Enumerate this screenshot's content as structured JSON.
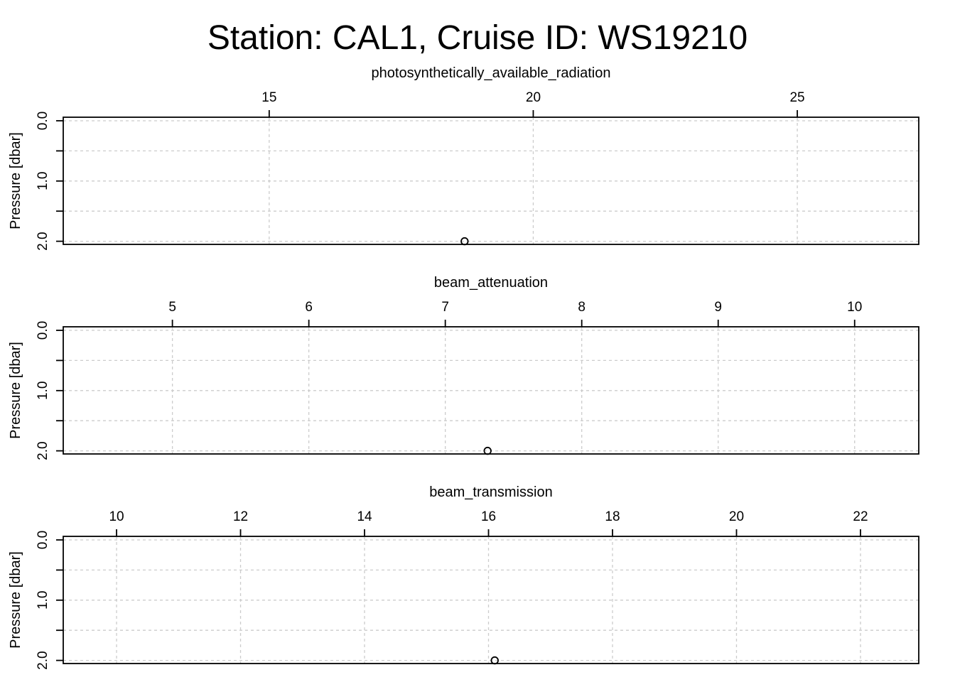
{
  "chart_data": {
    "title": "Station: CAL1, Cruise ID: WS19210",
    "panels": [
      {
        "type": "scatter",
        "xlabel": "photosynthetically_available_radiation",
        "ylabel": "Pressure [dbar]",
        "x_ticks": [
          15,
          20,
          25
        ],
        "xlim": [
          11.1,
          27.3
        ],
        "y_ticks": [
          "0.0",
          "1.0",
          "2.0"
        ],
        "y_minor_ticks": [
          0.5,
          1.5
        ],
        "ylim": [
          0,
          2.04
        ],
        "y_reversed": true,
        "grid": true,
        "points": [
          {
            "x": 18.7,
            "y": 2.0
          }
        ]
      },
      {
        "type": "scatter",
        "xlabel": "beam_attenuation",
        "ylabel": "Pressure [dbar]",
        "x_ticks": [
          5,
          6,
          7,
          8,
          9,
          10
        ],
        "xlim": [
          4.2,
          10.47
        ],
        "y_ticks": [
          "0.0",
          "1.0",
          "2.0"
        ],
        "y_minor_ticks": [
          0.5,
          1.5
        ],
        "ylim": [
          0,
          2.04
        ],
        "y_reversed": true,
        "grid": true,
        "points": [
          {
            "x": 7.31,
            "y": 2.0
          }
        ]
      },
      {
        "type": "scatter",
        "xlabel": "beam_transmission",
        "ylabel": "Pressure [dbar]",
        "x_ticks": [
          10,
          12,
          14,
          16,
          18,
          20,
          22
        ],
        "xlim": [
          9.14,
          22.94
        ],
        "y_ticks": [
          "0.0",
          "1.0",
          "2.0"
        ],
        "y_minor_ticks": [
          0.5,
          1.5
        ],
        "ylim": [
          0,
          2.04
        ],
        "y_reversed": true,
        "grid": true,
        "points": [
          {
            "x": 16.1,
            "y": 2.0
          }
        ]
      }
    ]
  }
}
